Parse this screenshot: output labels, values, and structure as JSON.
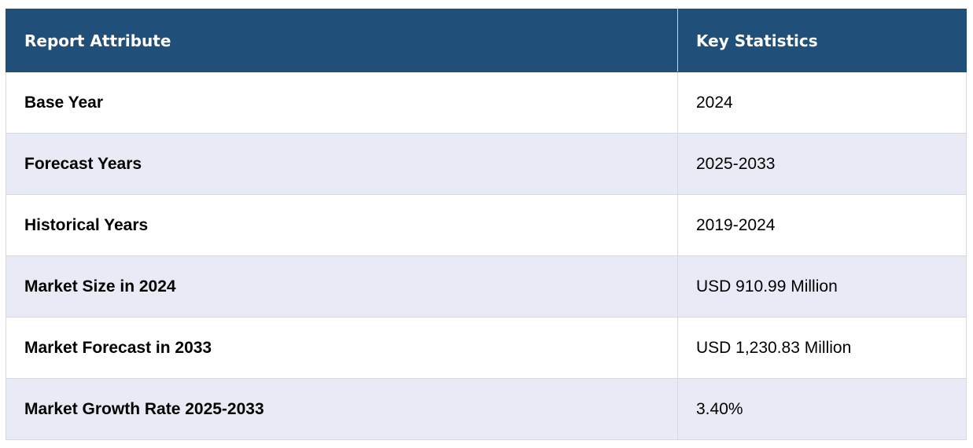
{
  "table": {
    "headers": {
      "attribute": "Report Attribute",
      "statistics": "Key Statistics"
    },
    "rows": [
      {
        "attribute": "Base Year",
        "value": "2024"
      },
      {
        "attribute": "Forecast Years",
        "value": "2025-2033"
      },
      {
        "attribute": "Historical Years",
        "value": "2019-2024"
      },
      {
        "attribute": "Market Size in 2024",
        "value": "USD 910.99 Million"
      },
      {
        "attribute": "Market Forecast in 2033",
        "value": "USD 1,230.83 Million"
      },
      {
        "attribute": "Market Growth Rate 2025-2033",
        "value": "3.40%"
      }
    ]
  },
  "colors": {
    "header_bg": "#204f7a",
    "header_text": "#ffffff",
    "stripe_bg": "#e8eaf5",
    "row_bg": "#ffffff",
    "border": "#d9d9d9"
  }
}
